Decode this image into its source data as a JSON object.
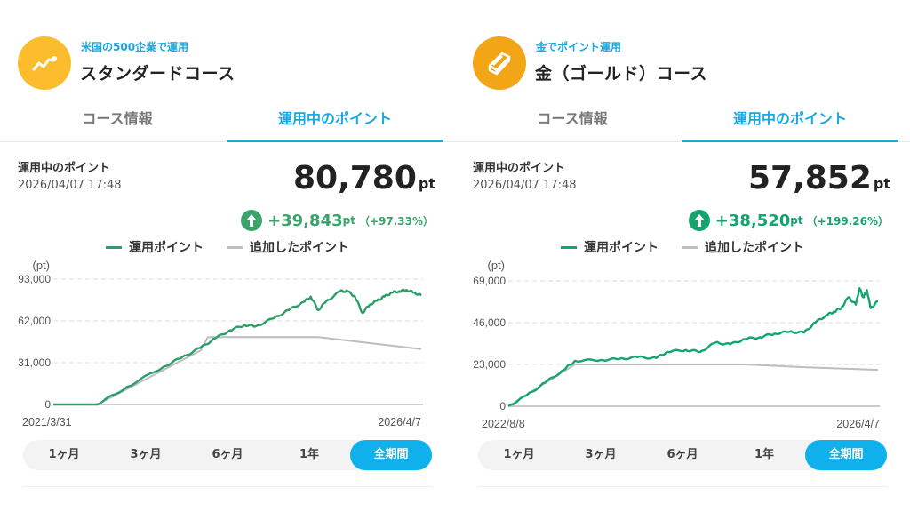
{
  "colors": {
    "accent": "#1aa7e0",
    "active_period_bg": "#0fb0ec",
    "gain": "#3aa36a",
    "series_invested": "#bdbdbd",
    "icon_standard_bg": "#fbbd2e",
    "icon_gold_bg": "#f2a516"
  },
  "panels": [
    {
      "icon": "trend-up-icon",
      "subtitle": "米国の500企業で運用",
      "title": "スタンダードコース",
      "tabs": [
        {
          "label": "コース情報",
          "active": false
        },
        {
          "label": "運用中のポイント",
          "active": true
        }
      ],
      "summary": {
        "label": "運用中のポイント",
        "datetime": "2026/04/07 17:48",
        "value": "80,780",
        "unit": "pt",
        "change_amount": "+39,843",
        "change_unit": "pt",
        "change_pct": "（+97.33%）"
      },
      "legend": [
        {
          "label": "運用ポイント",
          "color": "#2e9e68"
        },
        {
          "label": "追加したポイント",
          "color": "#bdbdbd"
        }
      ],
      "periods": [
        {
          "label": "1ヶ月"
        },
        {
          "label": "3ヶ月"
        },
        {
          "label": "6ヶ月"
        },
        {
          "label": "1年"
        },
        {
          "label": "全期間",
          "active": true
        }
      ]
    },
    {
      "icon": "gold-bar-icon",
      "subtitle": "金でポイント運用",
      "title": "金（ゴールド）コース",
      "tabs": [
        {
          "label": "コース情報",
          "active": false
        },
        {
          "label": "運用中のポイント",
          "active": true
        }
      ],
      "summary": {
        "label": "運用中のポイント",
        "datetime": "2026/04/07 17:48",
        "value": "57,852",
        "unit": "pt",
        "change_amount": "+38,520",
        "change_unit": "pt",
        "change_pct": "（+199.26%）"
      },
      "legend": [
        {
          "label": "運用ポイント",
          "color": "#14a56e"
        },
        {
          "label": "追加したポイント",
          "color": "#bdbdbd"
        }
      ],
      "periods": [
        {
          "label": "1ヶ月"
        },
        {
          "label": "3ヶ月"
        },
        {
          "label": "6ヶ月"
        },
        {
          "label": "1年"
        },
        {
          "label": "全期間",
          "active": true
        }
      ]
    }
  ],
  "chart_data": [
    {
      "type": "line",
      "title": "スタンダードコース 運用中のポイント",
      "ylabel": "(pt)",
      "ylim": [
        0,
        93000
      ],
      "yticks": [
        "0",
        "31,000",
        "62,000",
        "93,000"
      ],
      "ytick_values": [
        0,
        31000,
        62000,
        93000
      ],
      "x_start_label": "2021/3/31",
      "x_end_label": "2026/4/7",
      "x_unit": "fraction of period",
      "grid": true,
      "legend_position": "top-center",
      "series": [
        {
          "name": "運用ポイント",
          "color": "#2e9e68",
          "x": [
            0,
            0.05,
            0.1,
            0.12,
            0.2,
            0.3,
            0.35,
            0.4,
            0.44,
            0.48,
            0.52,
            0.55,
            0.6,
            0.64,
            0.68,
            0.7,
            0.72,
            0.74,
            0.78,
            0.8,
            0.82,
            0.84,
            0.86,
            0.88,
            0.9,
            0.92,
            0.94,
            0.96,
            0.98,
            1.0
          ],
          "values": [
            0,
            0,
            0,
            0,
            13000,
            28000,
            35000,
            42000,
            49000,
            55000,
            59000,
            58000,
            64000,
            70000,
            76000,
            80000,
            70000,
            76000,
            84000,
            84000,
            80000,
            68000,
            74000,
            77000,
            80000,
            83000,
            84000,
            85000,
            83000,
            80780
          ]
        },
        {
          "name": "追加したポイント",
          "color": "#bdbdbd",
          "x": [
            0,
            0.12,
            0.4,
            0.42,
            0.72,
            1.0
          ],
          "values": [
            0,
            0,
            40000,
            50000,
            50000,
            41000
          ]
        }
      ]
    },
    {
      "type": "line",
      "title": "金（ゴールド）コース 運用中のポイント",
      "ylabel": "(pt)",
      "ylim": [
        0,
        69000
      ],
      "yticks": [
        "0",
        "23,000",
        "46,000",
        "69,000"
      ],
      "ytick_values": [
        0,
        23000,
        46000,
        69000
      ],
      "x_start_label": "2022/8/8",
      "x_end_label": "2026/4/7",
      "x_unit": "fraction of period",
      "grid": true,
      "legend_position": "top-center",
      "series": [
        {
          "name": "運用ポイント",
          "color": "#14a56e",
          "x": [
            0,
            0.05,
            0.1,
            0.15,
            0.18,
            0.25,
            0.3,
            0.35,
            0.4,
            0.43,
            0.48,
            0.52,
            0.56,
            0.6,
            0.64,
            0.68,
            0.72,
            0.76,
            0.8,
            0.83,
            0.86,
            0.88,
            0.9,
            0.92,
            0.94,
            0.95,
            0.96,
            0.97,
            0.98,
            1.0
          ],
          "values": [
            0,
            6000,
            13000,
            20000,
            25000,
            25500,
            26000,
            27000,
            26500,
            30000,
            31000,
            30000,
            35000,
            34000,
            37000,
            38000,
            40000,
            41000,
            40500,
            46000,
            50000,
            52000,
            54000,
            60000,
            56000,
            65000,
            60000,
            64000,
            54000,
            57852
          ]
        },
        {
          "name": "追加したポイント",
          "color": "#bdbdbd",
          "x": [
            0,
            0.18,
            0.64,
            0.8,
            1.0
          ],
          "values": [
            0,
            23000,
            23000,
            21500,
            20000
          ]
        }
      ]
    }
  ]
}
